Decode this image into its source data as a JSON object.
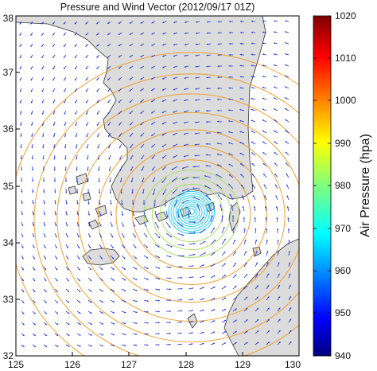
{
  "title": "Pressure and Wind Vector (2012/09/17 01Z)",
  "x_ticks": [
    "125",
    "126",
    "127",
    "128",
    "129",
    "130"
  ],
  "y_ticks": [
    "32",
    "33",
    "34",
    "35",
    "36",
    "37",
    "38"
  ],
  "x_range": [
    125,
    130
  ],
  "y_range": [
    32,
    38
  ],
  "colorbar": {
    "label": "Air Pressure (hpa)",
    "ticks": [
      "1020",
      "1010",
      "1000",
      "990",
      "980",
      "970",
      "960",
      "950",
      "940"
    ],
    "range": [
      940,
      1020
    ]
  },
  "typhoon_center": {
    "lon": 128.1,
    "lat": 34.55
  },
  "land_color": "#dcdcdc",
  "arrow_color": "#2233dd",
  "coast_color": "#333333"
}
